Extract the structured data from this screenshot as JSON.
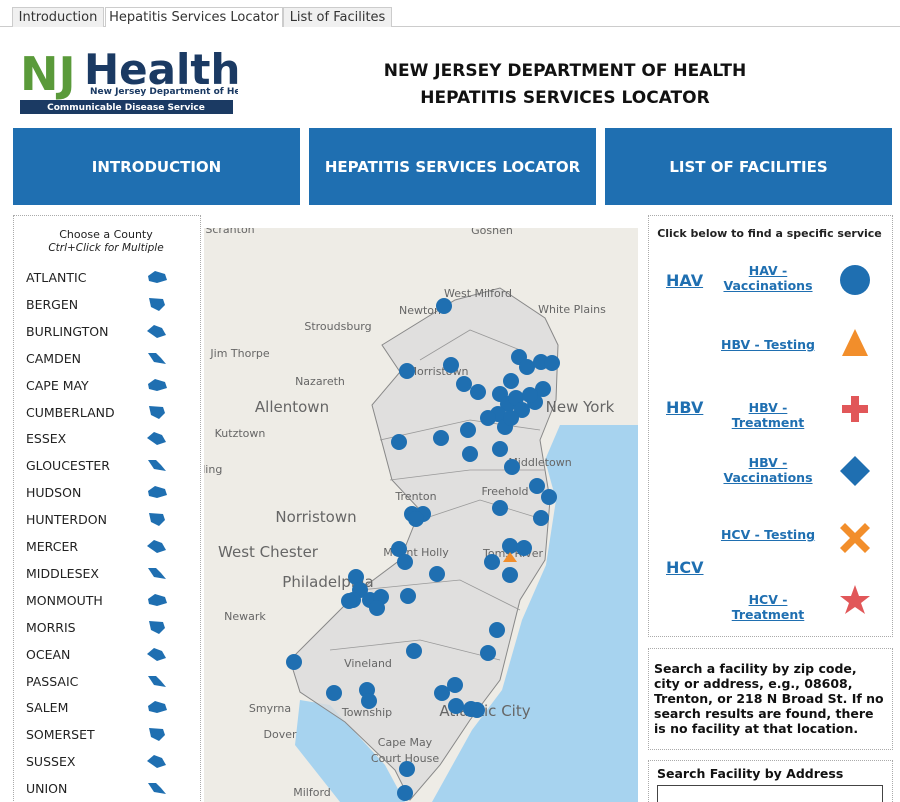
{
  "tabs": [
    "Introduction",
    "Hepatitis Services Locator",
    "List of Facilites"
  ],
  "logo": {
    "mark": "NJ",
    "brand": "Health",
    "subtitle": "New Jersey Department of Health",
    "service": "Communicable Disease Service"
  },
  "header": {
    "title_line1": "NEW JERSEY DEPARTMENT OF HEALTH",
    "title_line2": "HEPATITIS SERVICES LOCATOR"
  },
  "nav": [
    "INTRODUCTION",
    "HEPATITIS SERVICES LOCATOR",
    "LIST OF FACILITIES"
  ],
  "county_filter": {
    "title": "Choose a County",
    "hint": "Ctrl+Click for Multiple",
    "counties": [
      "ATLANTIC",
      "BERGEN",
      "BURLINGTON",
      "CAMDEN",
      "CAPE MAY",
      "CUMBERLAND",
      "ESSEX",
      "GLOUCESTER",
      "HUDSON",
      "HUNTERDON",
      "MERCER",
      "MIDDLESEX",
      "MONMOUTH",
      "MORRIS",
      "OCEAN",
      "PASSAIC",
      "SALEM",
      "SOMERSET",
      "SUSSEX",
      "UNION"
    ]
  },
  "map": {
    "labels": [
      "Scranton",
      "Goshen",
      "West Milford",
      "Newton",
      "White Plains",
      "Stroudsburg",
      "Jim Thorpe",
      "Nazareth",
      "Allentown",
      "Kutztown",
      "Reading",
      "Norristown",
      "West Chester",
      "Philadelphia",
      "Newark",
      "Trenton",
      "Freehold",
      "Vineland",
      "Smyrna",
      "Dover",
      "Milford",
      "Atlantic City",
      "New York",
      "Morristown",
      "Mount Holly",
      "Toms River",
      "Middletown",
      "Township",
      "Cape May",
      "Court House"
    ]
  },
  "services": {
    "instruction": "Click below to find a specific service",
    "groups": [
      {
        "name": "HAV",
        "items": [
          "HAV - Vaccinations"
        ]
      },
      {
        "name": "HBV",
        "items": [
          "HBV - Testing",
          "HBV - Treatment",
          "HBV - Vaccinations"
        ]
      },
      {
        "name": "HCV",
        "items": [
          "HCV - Testing",
          "HCV - Treatment"
        ]
      }
    ]
  },
  "search": {
    "help": "Search a facility by zip code, city or address, e.g., 08608, Trenton, or 218 N Broad St.  If no search results are found, there is no facility at that location.",
    "label": "Search Facility by Address"
  }
}
